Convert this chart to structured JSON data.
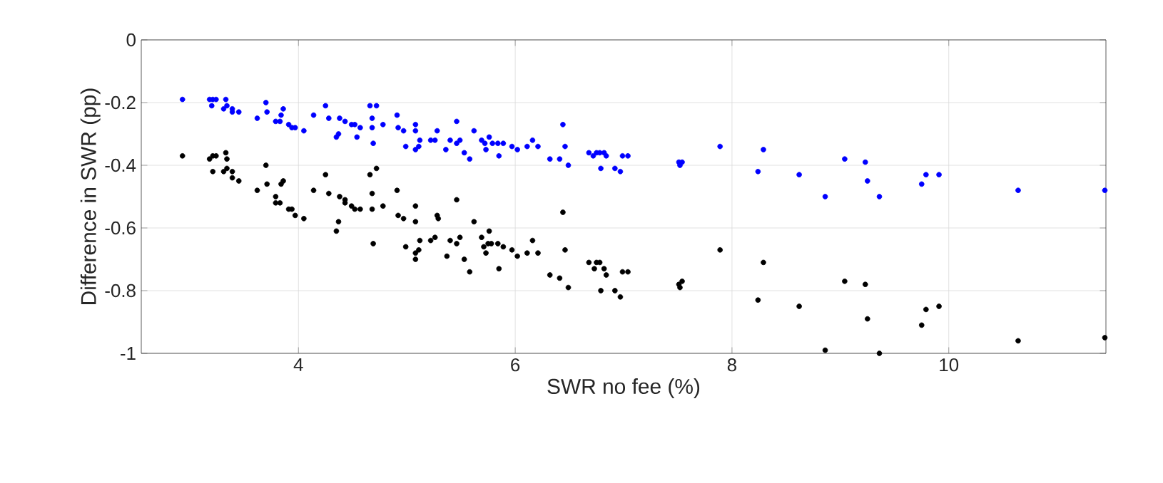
{
  "chart_data": {
    "type": "scatter",
    "xlabel": "SWR no fee (%)",
    "ylabel": "Difference in SWR (pp)",
    "xlim": [
      2.55,
      11.45
    ],
    "xticks": [
      4,
      6,
      8,
      10
    ],
    "ylim": [
      -1,
      0
    ],
    "yticks": [
      -1,
      -0.8,
      -0.6,
      -0.4,
      -0.2,
      0
    ],
    "grid": true,
    "marker": "circle",
    "series": [
      {
        "color": "#0000ff",
        "x": [
          2.93,
          3.18,
          3.21,
          3.24,
          3.33,
          3.2,
          3.31,
          3.34,
          3.39,
          3.39,
          3.45,
          3.62,
          3.7,
          3.71,
          3.79,
          3.83,
          3.84,
          3.86,
          3.91,
          3.94,
          3.97,
          4.05,
          4.14,
          4.25,
          4.28,
          4.35,
          4.37,
          4.38,
          4.43,
          4.49,
          4.52,
          4.54,
          4.57,
          4.66,
          4.68,
          4.68,
          4.69,
          4.72,
          4.78,
          4.91,
          4.92,
          4.97,
          4.99,
          5.08,
          5.08,
          5.08,
          5.11,
          5.12,
          5.22,
          5.26,
          5.28,
          5.36,
          5.4,
          5.46,
          5.46,
          5.49,
          5.53,
          5.58,
          5.62,
          5.69,
          5.72,
          5.73,
          5.76,
          5.79,
          5.84,
          5.85,
          5.89,
          5.97,
          6.02,
          6.11,
          6.16,
          6.21,
          6.32,
          6.41,
          6.44,
          6.46,
          6.49,
          6.68,
          6.72,
          6.75,
          6.78,
          6.79,
          6.82,
          6.84,
          6.92,
          6.97,
          6.99,
          7.04,
          7.51,
          7.52,
          7.54,
          7.89,
          8.24,
          8.29,
          8.62,
          8.86,
          9.04,
          9.23,
          9.25,
          9.36,
          9.75,
          9.79,
          9.91,
          10.64,
          11.44
        ],
        "values": [
          -0.19,
          -0.19,
          -0.19,
          -0.19,
          -0.19,
          -0.21,
          -0.22,
          -0.21,
          -0.22,
          -0.23,
          -0.23,
          -0.25,
          -0.2,
          -0.23,
          -0.26,
          -0.26,
          -0.24,
          -0.22,
          -0.27,
          -0.28,
          -0.28,
          -0.29,
          -0.24,
          -0.21,
          -0.25,
          -0.31,
          -0.3,
          -0.25,
          -0.26,
          -0.27,
          -0.27,
          -0.31,
          -0.28,
          -0.21,
          -0.25,
          -0.28,
          -0.33,
          -0.21,
          -0.27,
          -0.24,
          -0.28,
          -0.29,
          -0.34,
          -0.27,
          -0.29,
          -0.35,
          -0.34,
          -0.32,
          -0.32,
          -0.32,
          -0.29,
          -0.35,
          -0.32,
          -0.26,
          -0.33,
          -0.32,
          -0.36,
          -0.38,
          -0.29,
          -0.32,
          -0.33,
          -0.35,
          -0.31,
          -0.33,
          -0.33,
          -0.37,
          -0.33,
          -0.34,
          -0.35,
          -0.34,
          -0.32,
          -0.34,
          -0.38,
          -0.38,
          -0.27,
          -0.34,
          -0.4,
          -0.36,
          -0.37,
          -0.36,
          -0.36,
          -0.41,
          -0.36,
          -0.37,
          -0.41,
          -0.42,
          -0.37,
          -0.37,
          -0.39,
          -0.4,
          -0.39,
          -0.34,
          -0.42,
          -0.35,
          -0.43,
          -0.5,
          -0.38,
          -0.39,
          -0.45,
          -0.5,
          -0.46,
          -0.43,
          -0.43,
          -0.48,
          -0.48
        ]
      },
      {
        "color": "#000000",
        "x": [
          2.93,
          3.18,
          3.21,
          3.24,
          3.33,
          3.34,
          3.21,
          3.31,
          3.34,
          3.39,
          3.39,
          3.45,
          3.62,
          3.7,
          3.71,
          3.79,
          3.79,
          3.83,
          3.84,
          3.86,
          3.91,
          3.94,
          3.97,
          4.05,
          4.14,
          4.25,
          4.28,
          4.35,
          4.37,
          4.38,
          4.43,
          4.43,
          4.49,
          4.52,
          4.57,
          4.66,
          4.68,
          4.68,
          4.69,
          4.72,
          4.78,
          4.91,
          4.92,
          4.97,
          4.99,
          5.08,
          5.08,
          5.08,
          5.08,
          5.11,
          5.12,
          5.22,
          5.26,
          5.28,
          5.29,
          5.37,
          5.4,
          5.46,
          5.46,
          5.49,
          5.53,
          5.58,
          5.62,
          5.69,
          5.71,
          5.73,
          5.75,
          5.76,
          5.78,
          5.84,
          5.85,
          5.89,
          5.97,
          6.02,
          6.11,
          6.16,
          6.21,
          6.32,
          6.41,
          6.44,
          6.46,
          6.49,
          6.68,
          6.73,
          6.75,
          6.78,
          6.79,
          6.82,
          6.84,
          6.92,
          6.97,
          6.99,
          7.04,
          7.51,
          7.52,
          7.54,
          7.89,
          8.24,
          8.29,
          8.62,
          8.86,
          9.04,
          9.23,
          9.25,
          9.36,
          9.75,
          9.79,
          9.91,
          10.64,
          11.44
        ],
        "values": [
          -0.37,
          -0.38,
          -0.37,
          -0.37,
          -0.36,
          -0.38,
          -0.42,
          -0.42,
          -0.41,
          -0.42,
          -0.44,
          -0.45,
          -0.48,
          -0.4,
          -0.46,
          -0.5,
          -0.52,
          -0.52,
          -0.46,
          -0.45,
          -0.54,
          -0.54,
          -0.56,
          -0.57,
          -0.48,
          -0.43,
          -0.49,
          -0.61,
          -0.58,
          -0.5,
          -0.51,
          -0.52,
          -0.53,
          -0.54,
          -0.54,
          -0.43,
          -0.49,
          -0.54,
          -0.65,
          -0.41,
          -0.53,
          -0.48,
          -0.56,
          -0.57,
          -0.66,
          -0.53,
          -0.58,
          -0.68,
          -0.7,
          -0.67,
          -0.64,
          -0.64,
          -0.63,
          -0.56,
          -0.57,
          -0.69,
          -0.64,
          -0.51,
          -0.65,
          -0.63,
          -0.7,
          -0.74,
          -0.58,
          -0.63,
          -0.66,
          -0.68,
          -0.65,
          -0.61,
          -0.65,
          -0.65,
          -0.73,
          -0.66,
          -0.67,
          -0.69,
          -0.68,
          -0.64,
          -0.68,
          -0.75,
          -0.76,
          -0.55,
          -0.67,
          -0.79,
          -0.71,
          -0.73,
          -0.71,
          -0.71,
          -0.8,
          -0.73,
          -0.75,
          -0.8,
          -0.82,
          -0.74,
          -0.74,
          -0.78,
          -0.79,
          -0.77,
          -0.67,
          -0.83,
          -0.71,
          -0.85,
          -0.99,
          -0.77,
          -0.78,
          -0.89,
          -1.0,
          -0.91,
          -0.86,
          -0.85,
          -0.96,
          -0.95
        ]
      }
    ]
  }
}
